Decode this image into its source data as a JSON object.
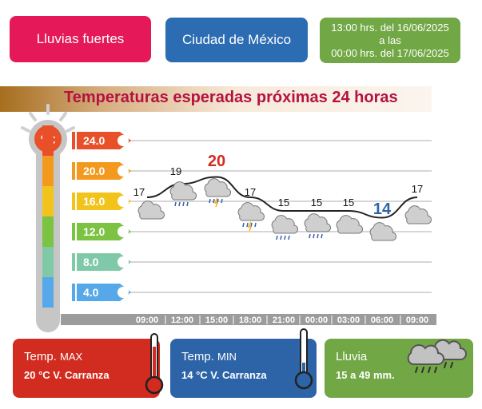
{
  "header": {
    "alert_label": "Lluvias fuertes",
    "city_label": "Ciudad de México",
    "period_line1": "13:00 hrs. del 16/06/2025",
    "period_line2": "a las",
    "period_line3": "00:00 hrs. del 17/06/2025"
  },
  "title": "Temperaturas esperadas próximas 24 horas",
  "thermometer": {
    "unit": "°C"
  },
  "chart_data": {
    "type": "line",
    "x": [
      "09:00",
      "12:00",
      "15:00",
      "18:00",
      "21:00",
      "00:00",
      "03:00",
      "06:00",
      "09:00"
    ],
    "series": [
      {
        "values": [
          17,
          19,
          20,
          17,
          15,
          15,
          15,
          14,
          17
        ]
      }
    ],
    "scale_labels": [
      "24.0",
      "20.0",
      "16.0",
      "12.0",
      "8.0",
      "4.0"
    ],
    "ylim": [
      4,
      24
    ],
    "max_point": 20,
    "min_point": 14,
    "weather_icons": [
      "cloud",
      "cloud-rain",
      "cloud-storm",
      "cloud-storm",
      "cloud-rain",
      "cloud-rain",
      "cloud",
      "cloud",
      "cloud"
    ]
  },
  "cards": {
    "max": {
      "label": "Temp.",
      "label_small": "MAX",
      "value": "20 °C  V. Carranza"
    },
    "min": {
      "label": "Temp.",
      "label_small": "MIN",
      "value": "14 °C  V. Carranza"
    },
    "rain": {
      "label": "Lluvia",
      "value": "15 a 49 mm."
    }
  },
  "colors": {
    "alert": "#e5185a",
    "city": "#2b6cb3",
    "period": "#71a744",
    "max": "#d22b1f",
    "min": "#2d64a8",
    "rain": "#71a744",
    "scale": [
      "#e8502a",
      "#f39a1e",
      "#f2c31b",
      "#7cc243",
      "#7fc9a8",
      "#56a8e8"
    ]
  }
}
